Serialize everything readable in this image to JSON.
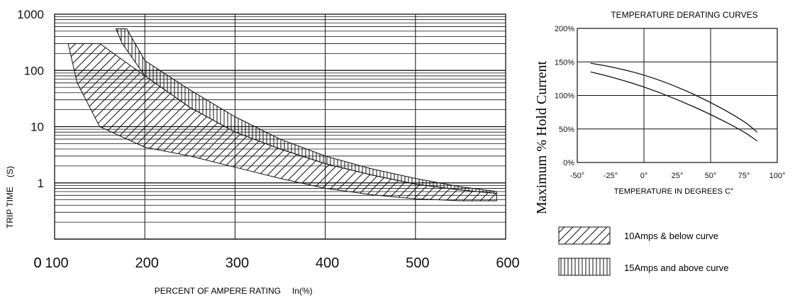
{
  "chart_data": [
    {
      "type": "line",
      "title": "",
      "xlabel": "PERCENT OF AMPERE RATING",
      "xlabel_suffix": "In(%)",
      "ylabel": "TRIP TIME",
      "ylabel_unit": "(S)",
      "x_ticks": [
        "100",
        "200",
        "300",
        "400",
        "500",
        "600"
      ],
      "x_zero_label": "0",
      "y_ticks": [
        "1000",
        "100",
        "10",
        "1"
      ],
      "xlim": [
        100,
        600
      ],
      "ylim": [
        0.1,
        1000
      ],
      "y_scale": "log",
      "grid": true,
      "series": [
        {
          "name": "10Amps & below curve",
          "fill": "diagonal-hatch",
          "upper": [
            [
              115,
              300
            ],
            [
              125,
              300
            ],
            [
              150,
              300
            ],
            [
              200,
              80
            ],
            [
              250,
              22
            ],
            [
              300,
              8
            ],
            [
              350,
              4
            ],
            [
              400,
              2.2
            ],
            [
              450,
              1.4
            ],
            [
              500,
              0.95
            ],
            [
              550,
              0.75
            ],
            [
              590,
              0.65
            ]
          ],
          "lower": [
            [
              115,
              300
            ],
            [
              125,
              60
            ],
            [
              150,
              10
            ],
            [
              200,
              4.3
            ],
            [
              250,
              3
            ],
            [
              300,
              1.9
            ],
            [
              350,
              1.2
            ],
            [
              400,
              0.8
            ],
            [
              450,
              0.62
            ],
            [
              500,
              0.52
            ],
            [
              550,
              0.48
            ],
            [
              590,
              0.48
            ]
          ]
        },
        {
          "name": "15Amps and above curve",
          "fill": "vertical-hatch",
          "upper": [
            [
              175,
              550
            ],
            [
              180,
              550
            ],
            [
              200,
              150
            ],
            [
              250,
              45
            ],
            [
              300,
              15
            ],
            [
              350,
              6
            ],
            [
              400,
              3
            ],
            [
              450,
              1.8
            ],
            [
              500,
              1.2
            ],
            [
              550,
              0.85
            ],
            [
              590,
              0.7
            ]
          ],
          "lower": [
            [
              168,
              550
            ],
            [
              175,
              300
            ],
            [
              200,
              80
            ],
            [
              250,
              22
            ],
            [
              300,
              8
            ],
            [
              350,
              4
            ],
            [
              400,
              2.2
            ],
            [
              450,
              1.4
            ],
            [
              500,
              0.95
            ],
            [
              550,
              0.75
            ],
            [
              590,
              0.65
            ]
          ]
        }
      ]
    },
    {
      "type": "line",
      "title": "TEMPERATURE DERATING CURVES",
      "xlabel": "TEMPERATURE IN DEGREES C°",
      "ylabel": "Maximum % Hold Current",
      "x_ticks": [
        "-50°",
        "-25°",
        "0°",
        "25°",
        "50°",
        "75°",
        "100°"
      ],
      "y_ticks": [
        "200%",
        "150%",
        "100%",
        "50%",
        "0%"
      ],
      "xlim": [
        -50,
        100
      ],
      "ylim": [
        0,
        200
      ],
      "grid": true,
      "series": [
        {
          "x": [
            -40,
            -25,
            0,
            25,
            50,
            75,
            85
          ],
          "values": [
            148,
            143,
            131,
            113,
            90,
            62,
            45
          ]
        },
        {
          "x": [
            -40,
            -25,
            0,
            25,
            50,
            75,
            85
          ],
          "values": [
            135,
            128,
            113,
            94,
            72,
            46,
            32
          ]
        }
      ]
    }
  ],
  "legend": [
    {
      "label": "10Amps & below curve",
      "pattern": "diagonal-hatch"
    },
    {
      "label": "15Amps and above curve",
      "pattern": "vertical-hatch"
    }
  ]
}
